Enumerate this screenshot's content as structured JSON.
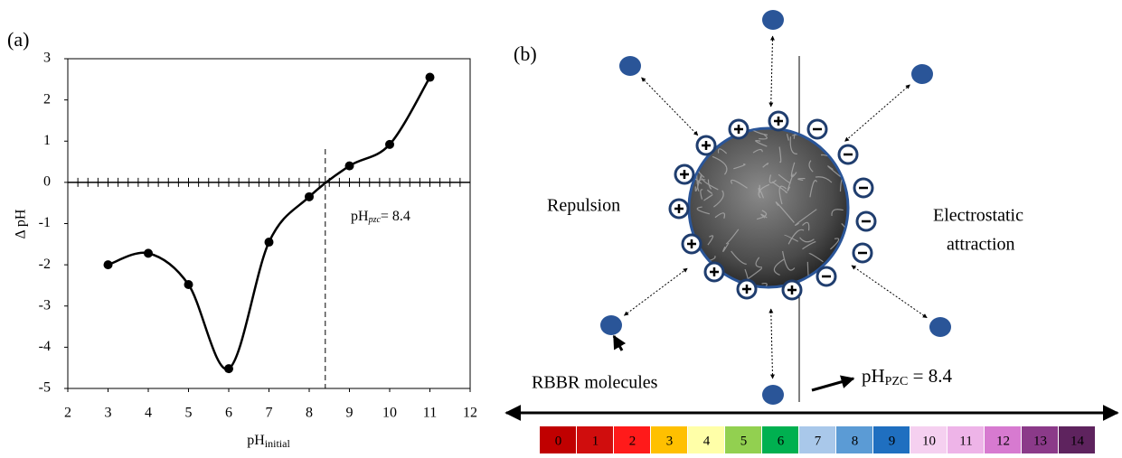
{
  "chart_data": {
    "type": "line",
    "panel_label": "(a)",
    "xlabel": "pH",
    "xlabel_sub": "initial",
    "ylabel": "Δ pH",
    "x": [
      3,
      4,
      5,
      6,
      7,
      8,
      9,
      10,
      11
    ],
    "y": [
      -2,
      -1.72,
      -2.48,
      -4.52,
      -1.45,
      -0.35,
      0.4,
      0.92,
      2.55
    ],
    "color": "#000000",
    "xlim": [
      2,
      12
    ],
    "xticks": [
      2,
      3,
      4,
      5,
      6,
      7,
      8,
      9,
      10,
      11,
      12
    ],
    "ylim": [
      -5,
      3
    ],
    "yticks": [
      -5,
      -4,
      -3,
      -2,
      -1,
      0,
      1,
      2,
      3
    ],
    "pzc_line": 8.4,
    "annotation": "pH",
    "annotation_sub": "pzc",
    "annotation_rest": "= 8.4"
  },
  "diagram": {
    "panel_label": "(b)",
    "left_label": "Repulsion",
    "right_label": [
      "Electrostatic",
      "attraction"
    ],
    "molecule_label": "RBBR molecules",
    "pzc_label": "pH",
    "pzc_sub": "PZC",
    "pzc_rest": " = 8.4",
    "ph_scale": [
      {
        "label": 0,
        "color": "#c00000"
      },
      {
        "label": 1,
        "color": "#d00d0d"
      },
      {
        "label": 2,
        "color": "#ff1a1a"
      },
      {
        "label": 3,
        "color": "#ffc000"
      },
      {
        "label": 4,
        "color": "#ffffa8"
      },
      {
        "label": 5,
        "color": "#92d050"
      },
      {
        "label": 6,
        "color": "#00b050"
      },
      {
        "label": 7,
        "color": "#a9c8ea"
      },
      {
        "label": 8,
        "color": "#5b9bd5"
      },
      {
        "label": 9,
        "color": "#1f6fc0"
      },
      {
        "label": 10,
        "color": "#f5d0f0"
      },
      {
        "label": 11,
        "color": "#eeb4e8"
      },
      {
        "label": 12,
        "color": "#d77ad0"
      },
      {
        "label": 13,
        "color": "#8b3a89"
      },
      {
        "label": 14,
        "color": "#5e235e"
      }
    ]
  }
}
